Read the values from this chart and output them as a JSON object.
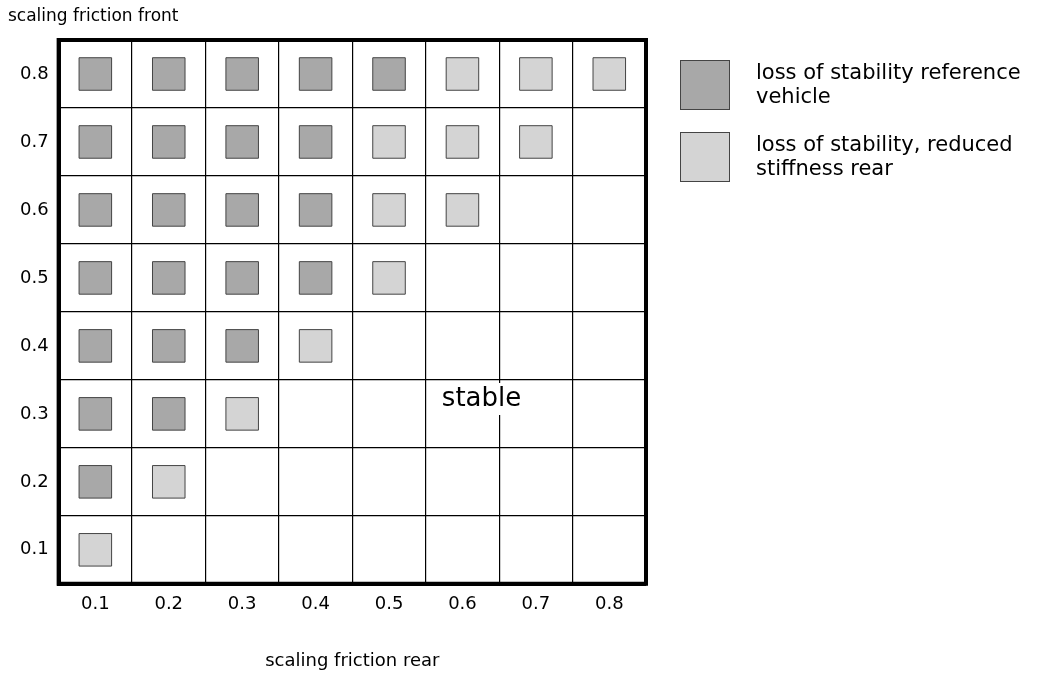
{
  "chart_data": {
    "type": "scatter",
    "xlabel": "scaling friction rear",
    "ylabel": "scaling friction front",
    "xlim": [
      0.05,
      0.85
    ],
    "ylim": [
      0.05,
      0.85
    ],
    "xticks": [
      0.1,
      {
        "value": 0.15,
        "label": null
      },
      0.2,
      {
        "value": 0.25,
        "label": null
      },
      0.3,
      {
        "value": 0.35,
        "label": null
      },
      0.4,
      {
        "value": 0.45,
        "label": null
      },
      0.5,
      {
        "value": 0.55,
        "label": null
      },
      0.6,
      {
        "value": 0.65,
        "label": null
      },
      0.7,
      {
        "value": 0.75,
        "label": null
      },
      0.8
    ],
    "yticks": [
      0.1,
      {
        "value": 0.15,
        "label": null
      },
      0.2,
      {
        "value": 0.25,
        "label": null
      },
      0.3,
      {
        "value": 0.35,
        "label": null
      },
      0.4,
      {
        "value": 0.45,
        "label": null
      },
      0.5,
      {
        "value": 0.55,
        "label": null
      },
      0.6,
      {
        "value": 0.65,
        "label": null
      },
      0.7,
      {
        "value": 0.75,
        "label": null
      },
      0.8
    ],
    "grid": true,
    "marker": "square",
    "legend": "top right",
    "series": [
      {
        "name": "loss of stability reference vehicle",
        "color": "#a8a8a8",
        "x": [
          0.1,
          0.2,
          0.3,
          0.4,
          0.5,
          0.1,
          0.2,
          0.3,
          0.4,
          0.1,
          0.2,
          0.3,
          0.4,
          0.1,
          0.2,
          0.3,
          0.4,
          0.1,
          0.2,
          0.3,
          0.1,
          0.2,
          0.1
        ],
        "values": [
          0.8,
          0.8,
          0.8,
          0.8,
          0.8,
          0.7,
          0.7,
          0.7,
          0.7,
          0.6,
          0.6,
          0.6,
          0.6,
          0.5,
          0.5,
          0.5,
          0.5,
          0.4,
          0.4,
          0.4,
          0.3,
          0.3,
          0.2
        ]
      },
      {
        "name": "loss of stability, reduced stiffness rear",
        "color": "#d4d4d4",
        "x": [
          0.6,
          0.7,
          0.8,
          0.5,
          0.6,
          0.7,
          0.5,
          0.6,
          0.5,
          0.4,
          0.3,
          0.2,
          0.1
        ],
        "values": [
          0.8,
          0.8,
          0.8,
          0.7,
          0.7,
          0.7,
          0.6,
          0.6,
          0.5,
          0.4,
          0.3,
          0.2,
          0.1
        ]
      }
    ],
    "annotations": [
      "stable"
    ]
  }
}
